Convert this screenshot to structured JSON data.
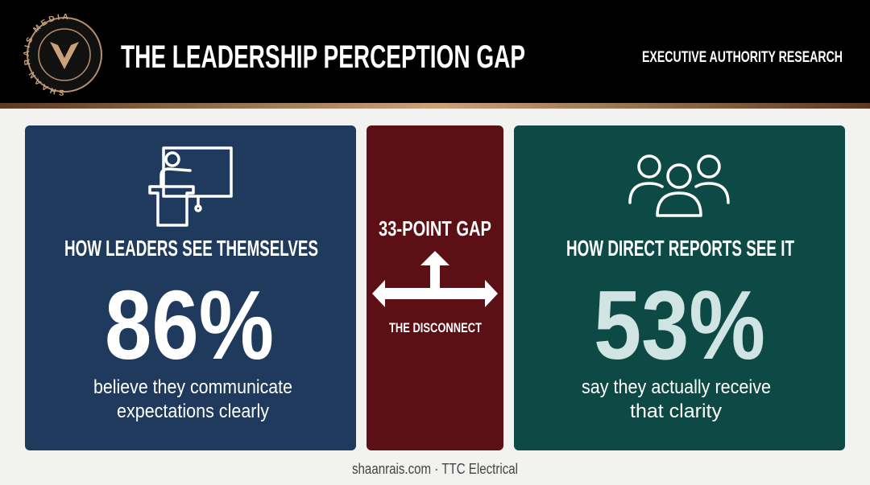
{
  "header": {
    "logo_text": "SHAAN RAIS MEDIA",
    "title": "THE LEADERSHIP PERCEPTION GAP",
    "tagline": "EXECUTIVE AUTHORITY RESEARCH"
  },
  "panels": [
    {
      "heading": "HOW LEADERS SEE THEMSELVES",
      "stat": "86%",
      "caption": [
        "believe they communicate",
        "expectations clearly"
      ]
    },
    {
      "heading": "33-POINT GAP",
      "caption": [
        "THE DISCONNECT"
      ]
    },
    {
      "heading": "HOW DIRECT REPORTS SEE IT",
      "stat": "53%",
      "caption": [
        "say they actually receive",
        "that clarity"
      ]
    }
  ],
  "footer": "shaanrais.com · TTC Electrical"
}
